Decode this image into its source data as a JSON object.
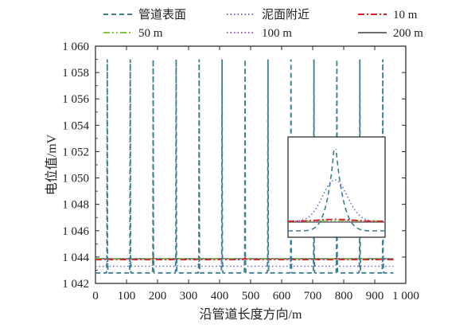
{
  "chart_data": {
    "type": "line",
    "title": "",
    "xlabel": "沿管道长度方向/m",
    "ylabel": "电位值/mV",
    "xlim": [
      0,
      1000
    ],
    "ylim": [
      1042,
      1060
    ],
    "xticks": [
      0,
      100,
      200,
      300,
      400,
      500,
      600,
      700,
      800,
      900,
      1000
    ],
    "yticks": [
      1042,
      1044,
      1046,
      1048,
      1050,
      1052,
      1054,
      1056,
      1058,
      1060
    ],
    "xtick_labels": [
      "0",
      "100",
      "200",
      "300",
      "400",
      "500",
      "600",
      "700",
      "800",
      "900",
      "1 000"
    ],
    "ytick_labels": [
      "1 042",
      "1 044",
      "1 046",
      "1 048",
      "1 050",
      "1 052",
      "1 054",
      "1 056",
      "1 058",
      "1 060"
    ],
    "grid": false,
    "legend_position": "top",
    "anode_positions": [
      38,
      112,
      186,
      260,
      334,
      408,
      482,
      556,
      630,
      704,
      778,
      852,
      926
    ],
    "series": [
      {
        "name": "管道表面",
        "color": "#3d7f8f",
        "style": "dashed",
        "baseline": 1042.8,
        "peak": 1059.0,
        "width": 2.5
      },
      {
        "name": "泥面附近",
        "color": "#6a6ad0",
        "style": "dotted",
        "baseline": 1043.3,
        "peak": 1044.1,
        "width": 8
      },
      {
        "name": "10 m",
        "color": "#d81e1e",
        "style": "dashdot",
        "baseline": 1043.8,
        "peak": 1043.92,
        "width": 20
      },
      {
        "name": "50 m",
        "color": "#7ac943",
        "style": "dashdotdot",
        "baseline": 1043.86,
        "peak": 1043.9,
        "width": 30
      },
      {
        "name": "100 m",
        "color": "#9b4dc9",
        "style": "dotted",
        "baseline": 1043.87,
        "peak": 1043.89,
        "width": 30
      },
      {
        "name": "200 m",
        "color": "#6e6e6e",
        "style": "solid",
        "baseline": 1043.88,
        "peak": 1043.88,
        "width": 30
      }
    ],
    "inset": {
      "description_hidden": true,
      "x_center": 778
    }
  }
}
